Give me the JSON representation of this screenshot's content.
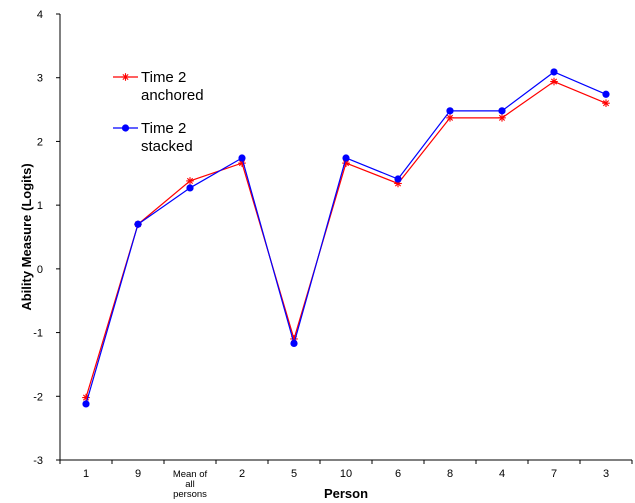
{
  "chart_data": {
    "type": "line",
    "categories": [
      "1",
      "9",
      "Mean of all persons",
      "2",
      "5",
      "10",
      "6",
      "8",
      "4",
      "7",
      "3"
    ],
    "category_label_lines": [
      [
        "1"
      ],
      [
        "9"
      ],
      [
        "Mean of",
        "all",
        "persons"
      ],
      [
        "2"
      ],
      [
        "5"
      ],
      [
        "10"
      ],
      [
        "6"
      ],
      [
        "8"
      ],
      [
        "4"
      ],
      [
        "7"
      ],
      [
        "3"
      ]
    ],
    "series": [
      {
        "name": "Time 2 anchored",
        "name_lines": [
          "Time 2",
          "anchored"
        ],
        "color": "#ff0000",
        "marker": "asterisk",
        "values": [
          -2.02,
          0.7,
          1.38,
          1.66,
          -1.1,
          1.66,
          1.34,
          2.37,
          2.37,
          2.94,
          2.6
        ]
      },
      {
        "name": "Time 2 stacked",
        "name_lines": [
          "Time 2",
          "stacked"
        ],
        "color": "#0000ff",
        "marker": "circle",
        "values": [
          -2.12,
          0.7,
          1.27,
          1.74,
          -1.17,
          1.74,
          1.41,
          2.48,
          2.48,
          3.09,
          2.74
        ]
      }
    ],
    "xlabel": "Person",
    "ylabel": "Ability Measure (Logits)",
    "ylim": [
      -3,
      4
    ],
    "yticks": [
      "-3",
      "-2",
      "-1",
      "0",
      "1",
      "2",
      "3",
      "4"
    ],
    "grid": false,
    "legend_position": "top-left"
  }
}
